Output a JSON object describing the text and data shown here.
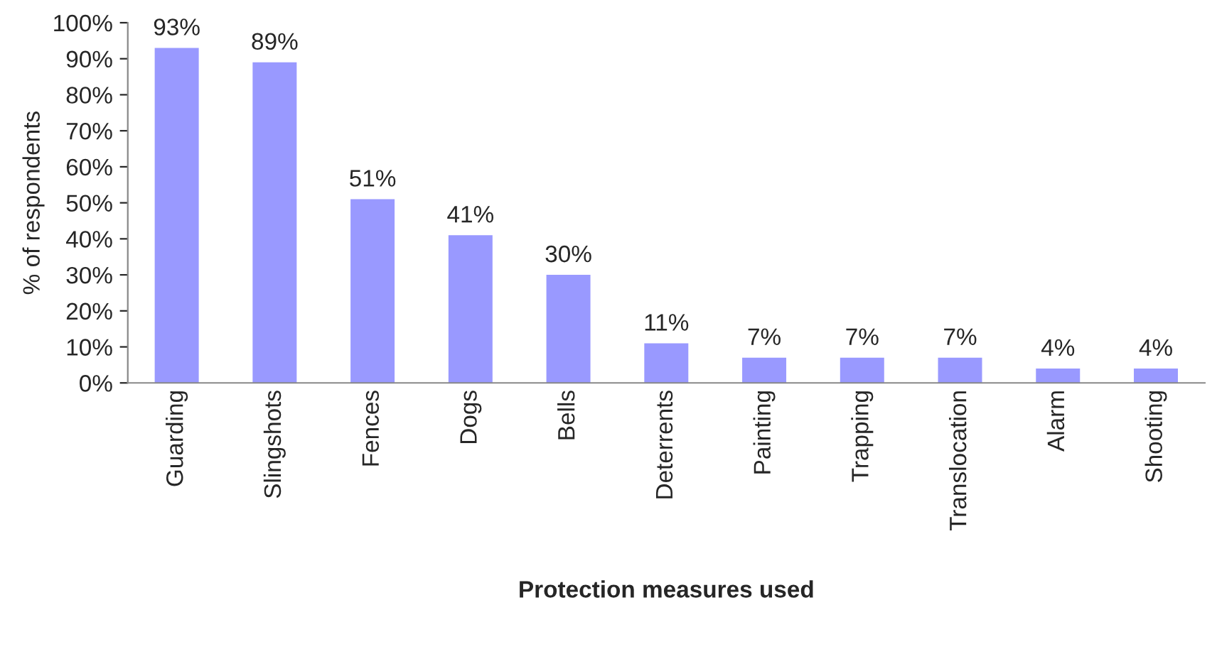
{
  "chart_data": {
    "type": "bar",
    "xlabel": "Protection measures used",
    "ylabel": "% of respondents",
    "categories": [
      "Guarding",
      "Slingshots",
      "Fences",
      "Dogs",
      "Bells",
      "Deterrents",
      "Painting",
      "Trapping",
      "Translocation",
      "Alarm",
      "Shooting"
    ],
    "values": [
      93,
      89,
      51,
      41,
      30,
      11,
      7,
      7,
      7,
      4,
      4
    ],
    "value_labels": [
      "93%",
      "89%",
      "51%",
      "41%",
      "30%",
      "11%",
      "7%",
      "7%",
      "7%",
      "4%",
      "4%"
    ],
    "color": "#9999ff",
    "ylim": [
      0,
      100
    ],
    "yticks": [
      {
        "value": 0,
        "label": "0%"
      },
      {
        "value": 10,
        "label": "10%"
      },
      {
        "value": 20,
        "label": "20%"
      },
      {
        "value": 30,
        "label": "30%"
      },
      {
        "value": 40,
        "label": "40%"
      },
      {
        "value": 50,
        "label": "50%"
      },
      {
        "value": 60,
        "label": "60%"
      },
      {
        "value": 70,
        "label": "70%"
      },
      {
        "value": 80,
        "label": "80%"
      },
      {
        "value": 90,
        "label": "90%"
      },
      {
        "value": 100,
        "label": "100%"
      }
    ],
    "grid": false,
    "legend": false
  }
}
